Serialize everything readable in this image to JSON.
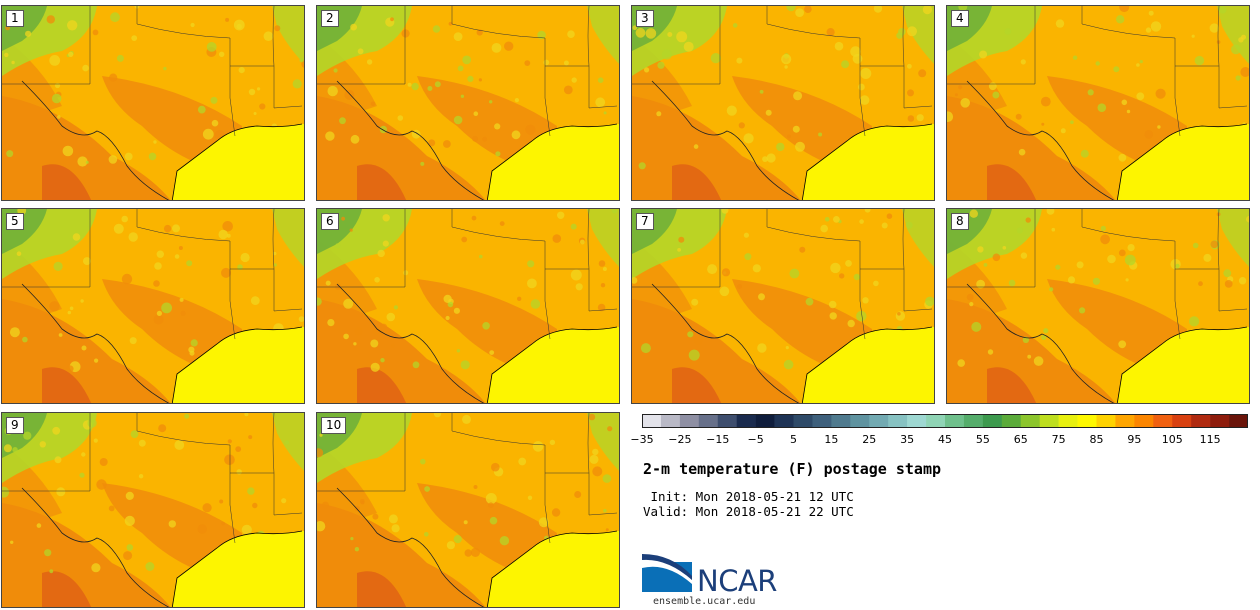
{
  "title": "2-m temperature (F) postage stamp",
  "init_line": " Init: Mon 2018-05-21 12 UTC",
  "valid_line": "Valid: Mon 2018-05-21 22 UTC",
  "site": "ensemble.ucar.edu",
  "logo_text": "NCAR",
  "members": [
    "1",
    "2",
    "3",
    "4",
    "5",
    "6",
    "7",
    "8",
    "9",
    "10"
  ],
  "colorbar": {
    "tick_labels": [
      "−35",
      "−25",
      "−15",
      "−5",
      "5",
      "15",
      "25",
      "35",
      "45",
      "55",
      "65",
      "75",
      "85",
      "95",
      "105",
      "115"
    ],
    "colors": [
      "#e3e3ea",
      "#b9b9c6",
      "#8e8fa3",
      "#67708a",
      "#3e4e6e",
      "#1a2b4e",
      "#0f1d3c",
      "#1e3355",
      "#2e4a68",
      "#3e607c",
      "#4f7a8e",
      "#5f93a0",
      "#72aab2",
      "#87c2c2",
      "#9ed8d2",
      "#8fd4b5",
      "#6fc08c",
      "#55ad6b",
      "#3d9a4e",
      "#5bab3a",
      "#8cc52c",
      "#bede1f",
      "#e8f00f",
      "#fef800",
      "#fed200",
      "#fea500",
      "#fb8500",
      "#f06010",
      "#d84010",
      "#b02a10",
      "#8e1c0c",
      "#6a140a"
    ]
  },
  "legend_colors": {
    "gulf": "#fdf500",
    "hot": "#f08c0a",
    "warm": "#fab400",
    "mild": "#f0d61e",
    "cool": "#b4d628",
    "cold": "#6cae3a"
  }
}
